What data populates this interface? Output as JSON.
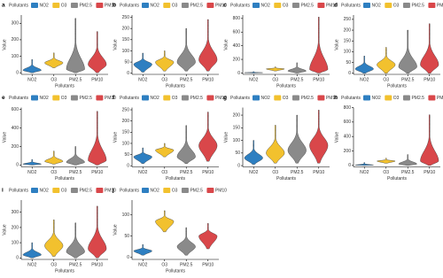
{
  "chart_data": [
    {
      "type": "violin",
      "letter": "a",
      "legend_title": "Pollutants",
      "xlabel": "Pollutants",
      "ylabel": "Value",
      "categories": [
        "NO2",
        "O3",
        "PM2.5",
        "PM10"
      ],
      "colors": [
        "#2e7fc1",
        "#f2c12e",
        "#8a8a8a",
        "#d9474a"
      ],
      "low": [
        0,
        30,
        0,
        0
      ],
      "mode": [
        15,
        60,
        20,
        50
      ],
      "high": [
        80,
        120,
        330,
        250
      ],
      "ylim": [
        -10,
        350
      ],
      "yticks": [
        0,
        100,
        200,
        300
      ]
    },
    {
      "type": "violin",
      "letter": "b",
      "legend_title": "Pollutants",
      "xlabel": "Pollutants",
      "ylabel": "Value",
      "categories": [
        "NO2",
        "O3",
        "PM2.5",
        "PM10"
      ],
      "colors": [
        "#2e7fc1",
        "#f2c12e",
        "#8a8a8a",
        "#d9474a"
      ],
      "low": [
        5,
        10,
        10,
        10
      ],
      "mode": [
        40,
        50,
        50,
        60
      ],
      "high": [
        90,
        100,
        200,
        240
      ],
      "ylim": [
        -5,
        260
      ],
      "yticks": [
        0,
        50,
        100,
        150,
        200,
        250
      ]
    },
    {
      "type": "violin",
      "letter": "c",
      "legend_title": "Pollutants",
      "xlabel": "Pollutants",
      "ylabel": "Value",
      "categories": [
        "NO2",
        "O3",
        "PM2.5",
        "PM10"
      ],
      "colors": [
        "#2e7fc1",
        "#f2c12e",
        "#8a8a8a",
        "#d9474a"
      ],
      "low": [
        0,
        30,
        0,
        0
      ],
      "mode": [
        5,
        60,
        30,
        50
      ],
      "high": [
        20,
        90,
        150,
        820
      ],
      "ylim": [
        -20,
        850
      ],
      "yticks": [
        0,
        200,
        400,
        600,
        800
      ]
    },
    {
      "type": "violin",
      "letter": "d",
      "legend_title": "Pollutants",
      "xlabel": "Pollutants",
      "ylabel": "Value",
      "categories": [
        "NO2",
        "O3",
        "PM2.5",
        "PM10"
      ],
      "colors": [
        "#2e7fc1",
        "#f2c12e",
        "#8a8a8a",
        "#d9474a"
      ],
      "low": [
        0,
        0,
        0,
        0
      ],
      "mode": [
        20,
        40,
        30,
        40
      ],
      "high": [
        80,
        120,
        200,
        230
      ],
      "ylim": [
        -5,
        270
      ],
      "yticks": [
        0,
        50,
        100,
        150,
        200,
        250
      ]
    },
    {
      "type": "violin",
      "letter": "e",
      "legend_title": "Pollutants",
      "xlabel": "Pollutants",
      "ylabel": "Value",
      "categories": [
        "NO2",
        "O3",
        "PM2.5",
        "PM10"
      ],
      "colors": [
        "#2e7fc1",
        "#f2c12e",
        "#8a8a8a",
        "#d9474a"
      ],
      "low": [
        0,
        10,
        0,
        0
      ],
      "mode": [
        10,
        40,
        30,
        50
      ],
      "high": [
        60,
        150,
        200,
        580
      ],
      "ylim": [
        -20,
        620
      ],
      "yticks": [
        0,
        200,
        400,
        600
      ]
    },
    {
      "type": "violin",
      "letter": "f",
      "legend_title": "Pollutants",
      "xlabel": "Pollutants",
      "ylabel": "Value",
      "categories": [
        "NO2",
        "O3",
        "PM2.5",
        "PM10"
      ],
      "colors": [
        "#2e7fc1",
        "#f2c12e",
        "#8a8a8a",
        "#d9474a"
      ],
      "low": [
        10,
        40,
        10,
        20
      ],
      "mode": [
        40,
        70,
        40,
        90
      ],
      "high": [
        80,
        100,
        180,
        240
      ],
      "ylim": [
        -5,
        260
      ],
      "yticks": [
        0,
        50,
        100,
        150,
        200,
        250
      ]
    },
    {
      "type": "violin",
      "letter": "g",
      "legend_title": "Pollutants",
      "xlabel": "Pollutants",
      "ylabel": "Value",
      "categories": [
        "NO2",
        "O3",
        "PM2.5",
        "PM10"
      ],
      "colors": [
        "#2e7fc1",
        "#f2c12e",
        "#8a8a8a",
        "#d9474a"
      ],
      "low": [
        5,
        10,
        10,
        10
      ],
      "mode": [
        30,
        50,
        60,
        80
      ],
      "high": [
        100,
        160,
        200,
        220
      ],
      "ylim": [
        -5,
        230
      ],
      "yticks": [
        0,
        50,
        100,
        150,
        200
      ]
    },
    {
      "type": "violin",
      "letter": "h",
      "legend_title": "Pollutants",
      "xlabel": "Pollutants",
      "ylabel": "Value",
      "categories": [
        "NO2",
        "O3",
        "PM2.5",
        "PM10"
      ],
      "colors": [
        "#2e7fc1",
        "#f2c12e",
        "#8a8a8a",
        "#d9474a"
      ],
      "low": [
        0,
        30,
        0,
        0
      ],
      "mode": [
        5,
        60,
        20,
        60
      ],
      "high": [
        40,
        100,
        150,
        700
      ],
      "ylim": [
        -20,
        800
      ],
      "yticks": [
        0,
        200,
        400,
        600,
        800
      ]
    },
    {
      "type": "violin",
      "letter": "i",
      "legend_title": "Pollutants",
      "xlabel": "Pollutants",
      "ylabel": "Value",
      "categories": [
        "NO2",
        "O3",
        "PM2.5",
        "PM10"
      ],
      "colors": [
        "#2e7fc1",
        "#f2c12e",
        "#8a8a8a",
        "#d9474a"
      ],
      "low": [
        0,
        10,
        0,
        0
      ],
      "mode": [
        20,
        80,
        40,
        60
      ],
      "high": [
        100,
        250,
        230,
        340
      ],
      "ylim": [
        -10,
        380
      ],
      "yticks": [
        0,
        100,
        200,
        300
      ]
    },
    {
      "type": "violin",
      "letter": "j",
      "legend_title": "Pollutants",
      "xlabel": "Pollutants",
      "ylabel": "Value",
      "categories": [
        "NO2",
        "O3",
        "PM2.5",
        "PM10"
      ],
      "colors": [
        "#2e7fc1",
        "#f2c12e",
        "#8a8a8a",
        "#d9474a"
      ],
      "low": [
        5,
        60,
        5,
        20
      ],
      "mode": [
        15,
        85,
        25,
        50
      ],
      "high": [
        30,
        110,
        70,
        80
      ],
      "ylim": [
        -5,
        135
      ],
      "yticks": [
        0,
        50,
        100
      ]
    }
  ]
}
